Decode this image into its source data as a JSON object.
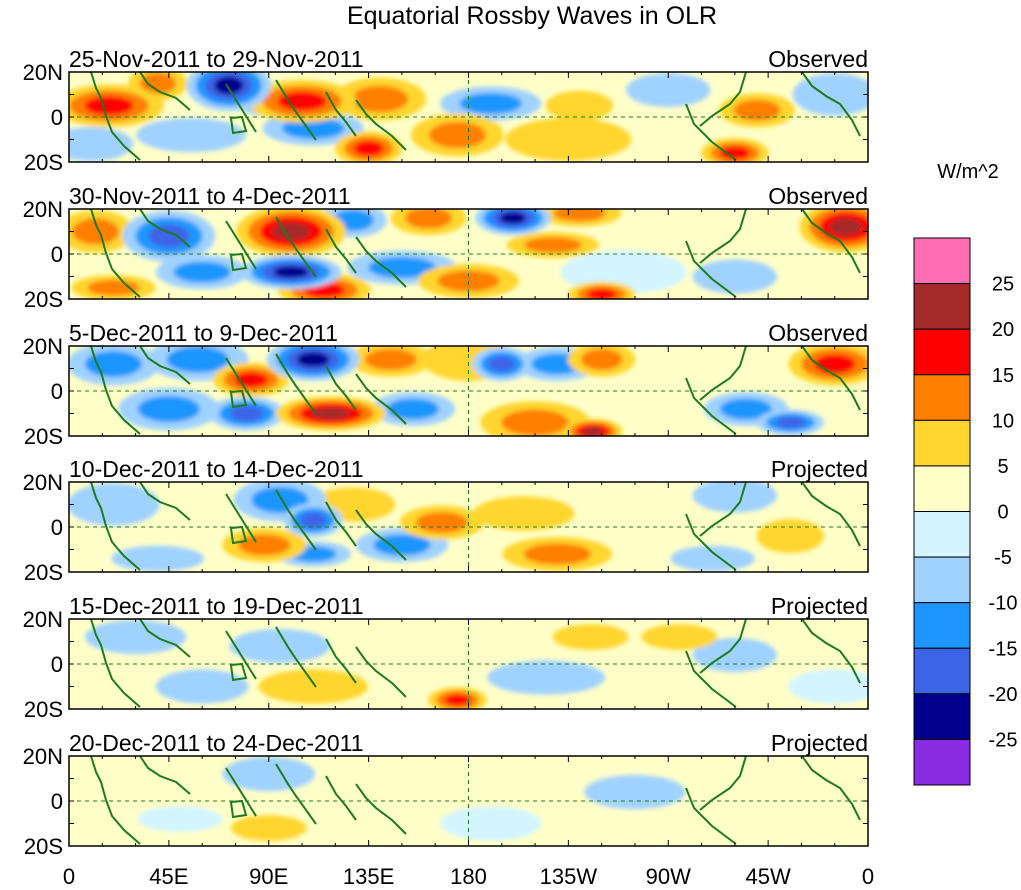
{
  "title": "Equatorial Rossby Waves in OLR",
  "panels": [
    {
      "period": "25-Nov-2011 to 29-Nov-2011",
      "kind": "Observed"
    },
    {
      "period": "30-Nov-2011 to 4-Dec-2011",
      "kind": "Observed"
    },
    {
      "period": "5-Dec-2011 to 9-Dec-2011",
      "kind": "Observed"
    },
    {
      "period": "10-Dec-2011 to 14-Dec-2011",
      "kind": "Projected"
    },
    {
      "period": "15-Dec-2011 to 19-Dec-2011",
      "kind": "Projected"
    },
    {
      "period": "20-Dec-2011 to 24-Dec-2011",
      "kind": "Projected"
    }
  ],
  "lat_labels": [
    "20N",
    "0",
    "20S"
  ],
  "lon_labels": [
    "0",
    "45E",
    "90E",
    "135E",
    "180",
    "135W",
    "90W",
    "45W",
    "0"
  ],
  "colorbar": {
    "units": "W/m^2",
    "labels": [
      "25",
      "20",
      "15",
      "10",
      "5",
      "0",
      "-5",
      "-10",
      "-15",
      "-20",
      "-25"
    ],
    "colors": [
      "#ff6eb4",
      "#a52a2a",
      "#ff0000",
      "#ff7f00",
      "#ffd52e",
      "#ffffc8",
      "#d2f5ff",
      "#a0d2ff",
      "#1e96ff",
      "#3c64e6",
      "#00008c",
      "#8b2be2"
    ]
  },
  "anomalies": [
    [
      {
        "lon": 18,
        "lat": 5,
        "w": 26,
        "h": 10,
        "v": 18
      },
      {
        "lon": 40,
        "lat": 15,
        "w": 14,
        "h": 8,
        "v": 14
      },
      {
        "lon": 72,
        "lat": 14,
        "w": 20,
        "h": 12,
        "v": -24
      },
      {
        "lon": 88,
        "lat": 8,
        "w": 14,
        "h": 8,
        "v": -12
      },
      {
        "lon": 105,
        "lat": 7,
        "w": 26,
        "h": 10,
        "v": 17
      },
      {
        "lon": 140,
        "lat": 8,
        "w": 22,
        "h": 10,
        "v": 12
      },
      {
        "lon": 190,
        "lat": 6,
        "w": 24,
        "h": 8,
        "v": -10
      },
      {
        "lon": 230,
        "lat": 5,
        "w": 16,
        "h": 7,
        "v": 8
      },
      {
        "lon": 270,
        "lat": 12,
        "w": 20,
        "h": 8,
        "v": -9
      },
      {
        "lon": 310,
        "lat": 3,
        "w": 18,
        "h": 8,
        "v": 10
      },
      {
        "lon": 345,
        "lat": 10,
        "w": 20,
        "h": 10,
        "v": -8
      },
      {
        "lon": 55,
        "lat": -8,
        "w": 26,
        "h": 8,
        "v": -9
      },
      {
        "lon": 110,
        "lat": -5,
        "w": 24,
        "h": 8,
        "v": -12
      },
      {
        "lon": 135,
        "lat": -14,
        "w": 16,
        "h": 8,
        "v": 15
      },
      {
        "lon": 175,
        "lat": -8,
        "w": 22,
        "h": 10,
        "v": 10
      },
      {
        "lon": 225,
        "lat": -10,
        "w": 30,
        "h": 10,
        "v": 6
      },
      {
        "lon": 300,
        "lat": -16,
        "w": 16,
        "h": 7,
        "v": 18
      },
      {
        "lon": 10,
        "lat": -12,
        "w": 20,
        "h": 8,
        "v": -7
      }
    ],
    [
      {
        "lon": 12,
        "lat": 10,
        "w": 18,
        "h": 10,
        "v": 14
      },
      {
        "lon": 45,
        "lat": 8,
        "w": 22,
        "h": 12,
        "v": -16
      },
      {
        "lon": 100,
        "lat": 10,
        "w": 26,
        "h": 12,
        "v": 22
      },
      {
        "lon": 128,
        "lat": 15,
        "w": 16,
        "h": 8,
        "v": -10
      },
      {
        "lon": 162,
        "lat": 16,
        "w": 18,
        "h": 8,
        "v": 12
      },
      {
        "lon": 200,
        "lat": 16,
        "w": 18,
        "h": 8,
        "v": -20
      },
      {
        "lon": 218,
        "lat": 4,
        "w": 22,
        "h": 6,
        "v": 12
      },
      {
        "lon": 230,
        "lat": 18,
        "w": 20,
        "h": 6,
        "v": 14
      },
      {
        "lon": 350,
        "lat": 12,
        "w": 22,
        "h": 12,
        "v": 20
      },
      {
        "lon": 60,
        "lat": -8,
        "w": 22,
        "h": 8,
        "v": -12
      },
      {
        "lon": 100,
        "lat": -8,
        "w": 24,
        "h": 8,
        "v": -22
      },
      {
        "lon": 115,
        "lat": -16,
        "w": 22,
        "h": 8,
        "v": 18
      },
      {
        "lon": 150,
        "lat": -6,
        "w": 26,
        "h": 8,
        "v": -14
      },
      {
        "lon": 180,
        "lat": -12,
        "w": 24,
        "h": 8,
        "v": 14
      },
      {
        "lon": 250,
        "lat": -8,
        "w": 30,
        "h": 10,
        "v": -4
      },
      {
        "lon": 240,
        "lat": -18,
        "w": 16,
        "h": 6,
        "v": 18
      },
      {
        "lon": 300,
        "lat": -10,
        "w": 20,
        "h": 8,
        "v": -8
      },
      {
        "lon": 20,
        "lat": -15,
        "w": 20,
        "h": 6,
        "v": 10
      }
    ],
    [
      {
        "lon": 20,
        "lat": 12,
        "w": 22,
        "h": 10,
        "v": -12
      },
      {
        "lon": 58,
        "lat": 14,
        "w": 24,
        "h": 10,
        "v": -14
      },
      {
        "lon": 82,
        "lat": 5,
        "w": 18,
        "h": 8,
        "v": 16
      },
      {
        "lon": 110,
        "lat": 14,
        "w": 22,
        "h": 10,
        "v": -20
      },
      {
        "lon": 145,
        "lat": 14,
        "w": 20,
        "h": 8,
        "v": 10
      },
      {
        "lon": 180,
        "lat": 14,
        "w": 22,
        "h": 10,
        "v": 8
      },
      {
        "lon": 195,
        "lat": 12,
        "w": 14,
        "h": 8,
        "v": -16
      },
      {
        "lon": 220,
        "lat": 12,
        "w": 20,
        "h": 8,
        "v": -10
      },
      {
        "lon": 240,
        "lat": 14,
        "w": 16,
        "h": 8,
        "v": 12
      },
      {
        "lon": 345,
        "lat": 12,
        "w": 22,
        "h": 10,
        "v": 18
      },
      {
        "lon": 45,
        "lat": -8,
        "w": 24,
        "h": 10,
        "v": -10
      },
      {
        "lon": 80,
        "lat": -10,
        "w": 18,
        "h": 8,
        "v": -18
      },
      {
        "lon": 118,
        "lat": -10,
        "w": 26,
        "h": 8,
        "v": 20
      },
      {
        "lon": 155,
        "lat": -8,
        "w": 20,
        "h": 8,
        "v": -12
      },
      {
        "lon": 210,
        "lat": -14,
        "w": 26,
        "h": 10,
        "v": 12
      },
      {
        "lon": 236,
        "lat": -18,
        "w": 14,
        "h": 6,
        "v": 22
      },
      {
        "lon": 305,
        "lat": -8,
        "w": 20,
        "h": 8,
        "v": -10
      },
      {
        "lon": 325,
        "lat": -14,
        "w": 16,
        "h": 6,
        "v": -16
      }
    ],
    [
      {
        "lon": 20,
        "lat": 10,
        "w": 22,
        "h": 10,
        "v": -6
      },
      {
        "lon": 95,
        "lat": 12,
        "w": 22,
        "h": 10,
        "v": -14
      },
      {
        "lon": 110,
        "lat": 3,
        "w": 14,
        "h": 8,
        "v": -18
      },
      {
        "lon": 128,
        "lat": 10,
        "w": 20,
        "h": 8,
        "v": 8
      },
      {
        "lon": 168,
        "lat": 2,
        "w": 20,
        "h": 8,
        "v": 14
      },
      {
        "lon": 205,
        "lat": 6,
        "w": 24,
        "h": 8,
        "v": 6
      },
      {
        "lon": 245,
        "lat": 12,
        "w": 20,
        "h": 6,
        "v": 4
      },
      {
        "lon": 300,
        "lat": 14,
        "w": 20,
        "h": 8,
        "v": -7
      },
      {
        "lon": 325,
        "lat": -4,
        "w": 16,
        "h": 8,
        "v": 7
      },
      {
        "lon": 88,
        "lat": -8,
        "w": 20,
        "h": 8,
        "v": 14
      },
      {
        "lon": 110,
        "lat": -12,
        "w": 18,
        "h": 6,
        "v": -12
      },
      {
        "lon": 150,
        "lat": -8,
        "w": 22,
        "h": 8,
        "v": -10
      },
      {
        "lon": 220,
        "lat": -12,
        "w": 26,
        "h": 8,
        "v": 12
      },
      {
        "lon": 40,
        "lat": -14,
        "w": 22,
        "h": 6,
        "v": -6
      },
      {
        "lon": 290,
        "lat": -14,
        "w": 20,
        "h": 6,
        "v": -7
      }
    ],
    [
      {
        "lon": 30,
        "lat": 12,
        "w": 24,
        "h": 8,
        "v": -5
      },
      {
        "lon": 95,
        "lat": 8,
        "w": 24,
        "h": 8,
        "v": -6
      },
      {
        "lon": 160,
        "lat": 10,
        "w": 22,
        "h": 6,
        "v": 4
      },
      {
        "lon": 235,
        "lat": 12,
        "w": 18,
        "h": 6,
        "v": 9
      },
      {
        "lon": 275,
        "lat": 12,
        "w": 18,
        "h": 6,
        "v": 8
      },
      {
        "lon": 300,
        "lat": 4,
        "w": 20,
        "h": 8,
        "v": -6
      },
      {
        "lon": 110,
        "lat": -10,
        "w": 26,
        "h": 8,
        "v": 5
      },
      {
        "lon": 175,
        "lat": -16,
        "w": 14,
        "h": 6,
        "v": 15
      },
      {
        "lon": 215,
        "lat": -6,
        "w": 28,
        "h": 8,
        "v": -5
      },
      {
        "lon": 60,
        "lat": -10,
        "w": 22,
        "h": 8,
        "v": -5
      },
      {
        "lon": 345,
        "lat": -10,
        "w": 22,
        "h": 8,
        "v": -4
      }
    ],
    [
      {
        "lon": 25,
        "lat": 10,
        "w": 22,
        "h": 8,
        "v": 4
      },
      {
        "lon": 90,
        "lat": 12,
        "w": 22,
        "h": 8,
        "v": -5
      },
      {
        "lon": 165,
        "lat": 8,
        "w": 20,
        "h": 6,
        "v": 4
      },
      {
        "lon": 210,
        "lat": 12,
        "w": 22,
        "h": 8,
        "v": 3
      },
      {
        "lon": 255,
        "lat": 4,
        "w": 24,
        "h": 8,
        "v": -5
      },
      {
        "lon": 90,
        "lat": -12,
        "w": 18,
        "h": 6,
        "v": 9
      },
      {
        "lon": 140,
        "lat": -6,
        "w": 26,
        "h": 8,
        "v": 4
      },
      {
        "lon": 190,
        "lat": -10,
        "w": 24,
        "h": 8,
        "v": -4
      },
      {
        "lon": 300,
        "lat": -10,
        "w": 24,
        "h": 8,
        "v": 4
      },
      {
        "lon": 50,
        "lat": -8,
        "w": 20,
        "h": 6,
        "v": -4
      }
    ]
  ]
}
